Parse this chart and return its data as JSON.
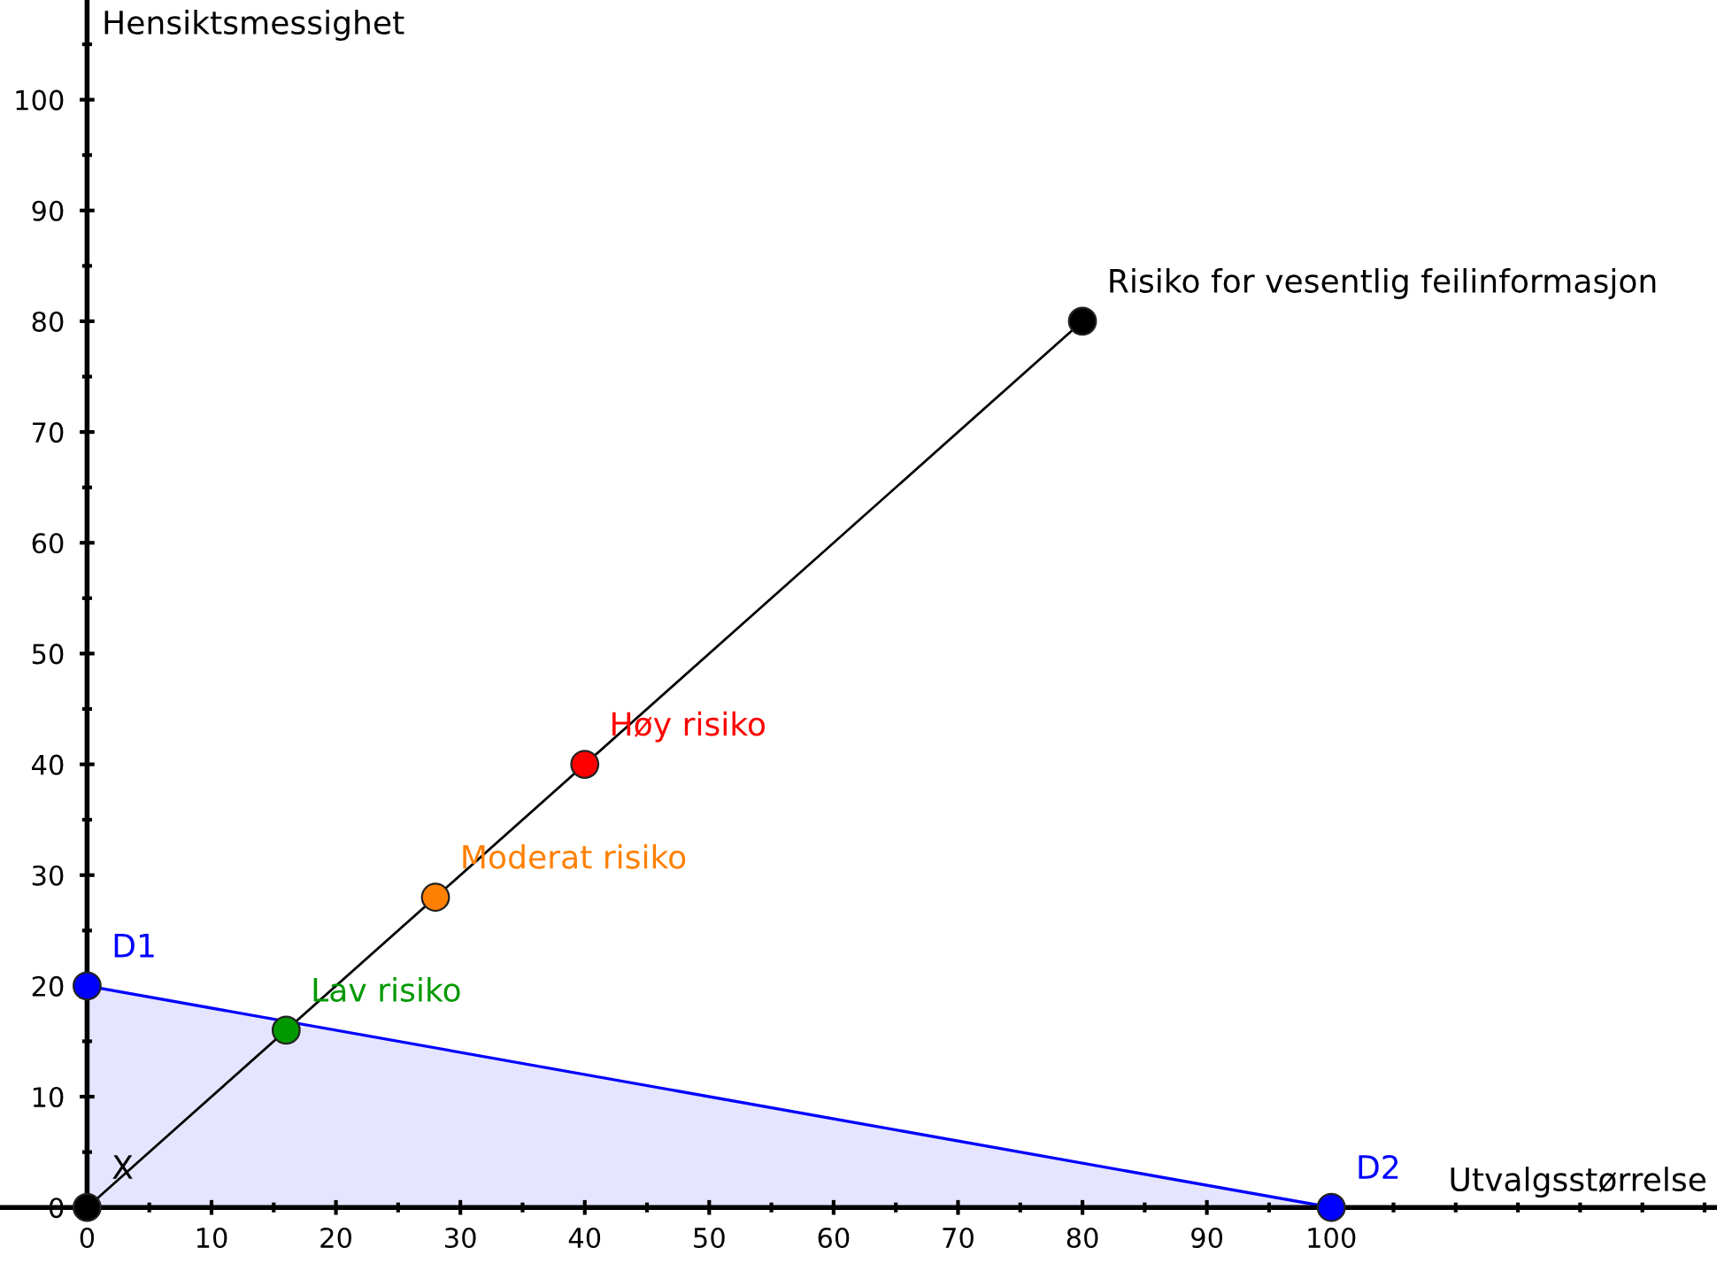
{
  "chart_data": {
    "type": "scatter",
    "xlabel": "Utvalgsstørrelse",
    "ylabel": "Hensiktsmessighet",
    "xlim": [
      -7,
      131
    ],
    "ylim": [
      0,
      109
    ],
    "xticks": [
      0,
      {
        "value": 5,
        "label": null
      },
      10,
      {
        "value": 15,
        "label": null
      },
      20,
      {
        "value": 25,
        "label": null
      },
      30,
      {
        "value": 35,
        "label": null
      },
      40,
      {
        "value": 45,
        "label": null
      },
      50,
      {
        "value": 55,
        "label": null
      },
      60,
      {
        "value": 65,
        "label": null
      },
      70,
      {
        "value": 75,
        "label": null
      },
      80,
      {
        "value": 85,
        "label": null
      },
      90,
      {
        "value": 95,
        "label": null
      },
      100,
      {
        "value": 105,
        "label": null
      },
      {
        "value": 110,
        "label": null
      },
      {
        "value": 115,
        "label": null
      },
      {
        "value": 120,
        "label": null
      },
      {
        "value": 125,
        "label": null
      },
      {
        "value": 130,
        "label": null
      }
    ],
    "yticks": [
      0,
      {
        "value": 5,
        "label": null
      },
      10,
      {
        "value": 15,
        "label": null
      },
      20,
      {
        "value": 25,
        "label": null
      },
      30,
      {
        "value": 35,
        "label": null
      },
      40,
      {
        "value": 45,
        "label": null
      },
      50,
      {
        "value": 55,
        "label": null
      },
      60,
      {
        "value": 65,
        "label": null
      },
      70,
      {
        "value": 75,
        "label": null
      },
      80,
      {
        "value": 85,
        "label": null
      },
      90,
      {
        "value": 95,
        "label": null
      },
      100,
      {
        "value": 105,
        "label": null
      }
    ],
    "grid": false,
    "legend": false,
    "series": [
      {
        "type": "area",
        "color": "#0000ff",
        "x": [
          0,
          100
        ],
        "values": [
          20,
          0
        ]
      },
      {
        "type": "line",
        "color": "#000000",
        "x": [
          0,
          80
        ],
        "values": [
          0,
          80
        ]
      },
      {
        "name": "X",
        "marker": "circle",
        "color": "#000000",
        "x": [
          0
        ],
        "values": [
          0
        ]
      },
      {
        "name": "D1",
        "marker": "circle",
        "color": "#0000ff",
        "x": [
          0
        ],
        "values": [
          20
        ]
      },
      {
        "name": "Lav risiko",
        "marker": "circle",
        "color": "#009900",
        "x": [
          16
        ],
        "values": [
          16
        ]
      },
      {
        "name": "Moderat risiko",
        "marker": "circle",
        "color": "#ff8000",
        "x": [
          28
        ],
        "values": [
          28
        ]
      },
      {
        "name": "Høy risiko",
        "marker": "circle",
        "color": "#ff0000",
        "x": [
          40
        ],
        "values": [
          40
        ]
      },
      {
        "name": "Risiko for vesentlig feilinformasjon",
        "marker": "circle",
        "color": "#000000",
        "x": [
          80
        ],
        "values": [
          80
        ]
      },
      {
        "name": "D2",
        "marker": "circle",
        "color": "#0000ff",
        "x": [
          100
        ],
        "values": [
          0
        ]
      }
    ]
  }
}
